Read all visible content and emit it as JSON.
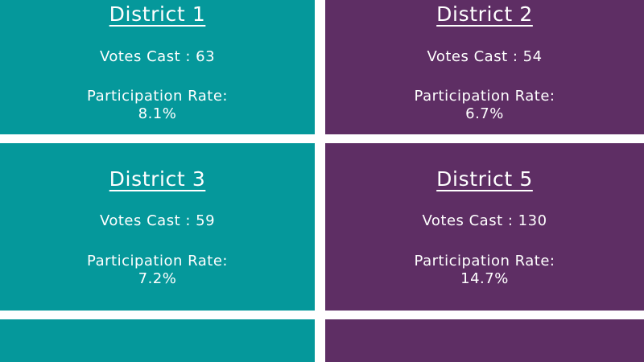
{
  "colors": {
    "teal": "#05989b",
    "purple": "#5e2e64",
    "text": "#ffffff",
    "background": "#ffffff"
  },
  "districts": [
    {
      "title": "District 1",
      "votes_label": "Votes Cast",
      "votes_value": "63",
      "rate_label": "Participation Rate:",
      "rate_value": "8.1%"
    },
    {
      "title": "District 2",
      "votes_label": "Votes Cast",
      "votes_value": "54",
      "rate_label": "Participation Rate:",
      "rate_value": "6.7%"
    },
    {
      "title": "District 3",
      "votes_label": "Votes Cast",
      "votes_value": "59",
      "rate_label": "Participation Rate:",
      "rate_value": "7.2%"
    },
    {
      "title": "District 5",
      "votes_label": "Votes Cast",
      "votes_value": "130",
      "rate_label": "Participation Rate:",
      "rate_value": "14.7%"
    }
  ]
}
